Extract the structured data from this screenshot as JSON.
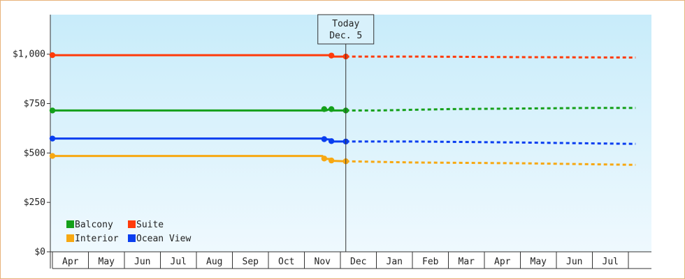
{
  "chart_data": {
    "type": "line",
    "title": "",
    "xlabel": "",
    "ylabel": "",
    "ylim": [
      0,
      1200
    ],
    "y_ticks": [
      {
        "value": 0,
        "label": "$0"
      },
      {
        "value": 250,
        "label": "$250"
      },
      {
        "value": 500,
        "label": "$500"
      },
      {
        "value": 750,
        "label": "$750"
      },
      {
        "value": 1000,
        "label": "$1,000"
      }
    ],
    "x_months": [
      "Apr",
      "May",
      "Jun",
      "Jul",
      "Aug",
      "Sep",
      "Oct",
      "Nov",
      "Dec",
      "Jan",
      "Feb",
      "Mar",
      "Apr",
      "May",
      "Jun",
      "Jul"
    ],
    "today": {
      "line1": "Today",
      "line2": "Dec. 5",
      "x": 8.15
    },
    "background": {
      "top": "#c8ecfa",
      "bottom": "#eff9fe"
    },
    "legend": {
      "placement": "bottom-left"
    },
    "series": [
      {
        "name": "Balcony",
        "color": "#14a01a",
        "history": [
          [
            0,
            715
          ],
          [
            7.5,
            715
          ],
          [
            7.55,
            725
          ],
          [
            7.6,
            715
          ],
          [
            7.75,
            725
          ],
          [
            7.8,
            715
          ],
          [
            8.15,
            715
          ]
        ],
        "history_points": [
          [
            0,
            715
          ],
          [
            7.55,
            722
          ],
          [
            7.75,
            722
          ],
          [
            8.15,
            715
          ]
        ],
        "forecast": [
          [
            8.15,
            715
          ],
          [
            9.0,
            715
          ],
          [
            11.0,
            722
          ],
          [
            13.0,
            725
          ],
          [
            15.0,
            728
          ],
          [
            16.2,
            728
          ]
        ]
      },
      {
        "name": "Suite",
        "color": "#ff3b0a",
        "history": [
          [
            0,
            995
          ],
          [
            7.75,
            995
          ],
          [
            7.8,
            988
          ],
          [
            8.15,
            988
          ]
        ],
        "history_points": [
          [
            0,
            995
          ],
          [
            7.75,
            993
          ],
          [
            8.15,
            988
          ]
        ],
        "forecast": [
          [
            8.15,
            988
          ],
          [
            10.0,
            988
          ],
          [
            13.0,
            985
          ],
          [
            16.2,
            983
          ]
        ]
      },
      {
        "name": "Interior",
        "color": "#f7a812",
        "history": [
          [
            0,
            485
          ],
          [
            7.5,
            485
          ],
          [
            7.55,
            470
          ],
          [
            7.75,
            470
          ],
          [
            7.8,
            460
          ],
          [
            8.15,
            458
          ]
        ],
        "history_points": [
          [
            0,
            485
          ],
          [
            7.55,
            472
          ],
          [
            7.75,
            462
          ],
          [
            8.15,
            458
          ]
        ],
        "forecast": [
          [
            8.15,
            458
          ],
          [
            10.0,
            452
          ],
          [
            13.0,
            448
          ],
          [
            16.2,
            440
          ]
        ]
      },
      {
        "name": "Ocean View",
        "color": "#0a3ef0",
        "history": [
          [
            0,
            573
          ],
          [
            7.5,
            573
          ],
          [
            7.55,
            570
          ],
          [
            7.75,
            568
          ],
          [
            7.8,
            558
          ],
          [
            8.15,
            558
          ]
        ],
        "history_points": [
          [
            0,
            573
          ],
          [
            7.55,
            570
          ],
          [
            7.75,
            560
          ],
          [
            8.15,
            558
          ]
        ],
        "forecast": [
          [
            8.15,
            558
          ],
          [
            10.0,
            558
          ],
          [
            13.0,
            553
          ],
          [
            16.2,
            546
          ]
        ]
      }
    ]
  }
}
